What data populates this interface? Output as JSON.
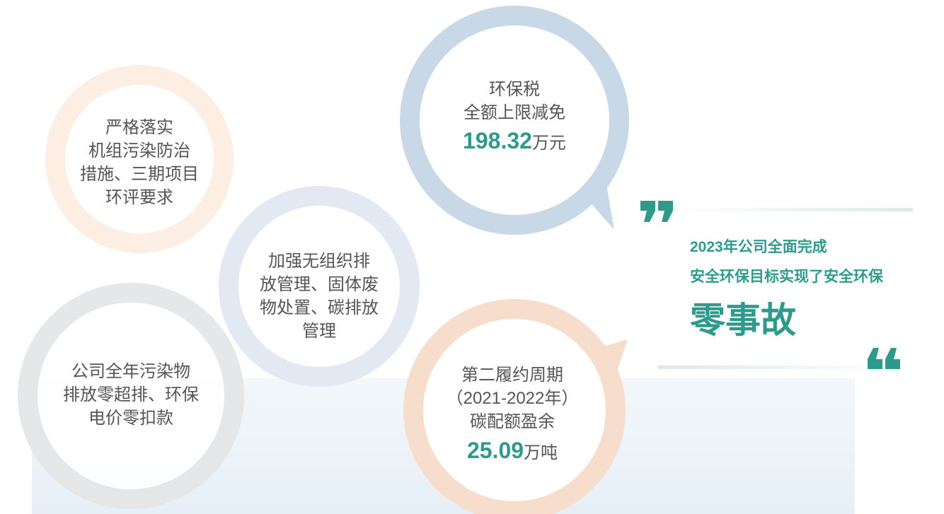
{
  "circles": [
    {
      "lines": [
        "严格落实",
        "机组污染防治",
        "措施、三期项目",
        "环评要求"
      ]
    },
    {
      "lines": [
        "加强无组织排",
        "放管理、固体废",
        "物处置、碳排放",
        "管理"
      ]
    },
    {
      "lines": [
        "公司全年污染物",
        "排放零超排、环保",
        "电价零扣款"
      ]
    },
    {
      "lines": [
        "环保税",
        "全额上限减免"
      ],
      "value": "198.32",
      "unit": "万元"
    },
    {
      "lines": [
        "第二履约周期",
        "（2021-2022年）",
        "碳配额盈余"
      ],
      "value": "25.09",
      "unit": "万吨"
    }
  ],
  "summary": {
    "lines": [
      "2023年公司全面完成",
      "安全环保目标实现了安全环保"
    ],
    "highlight": "零事故"
  }
}
